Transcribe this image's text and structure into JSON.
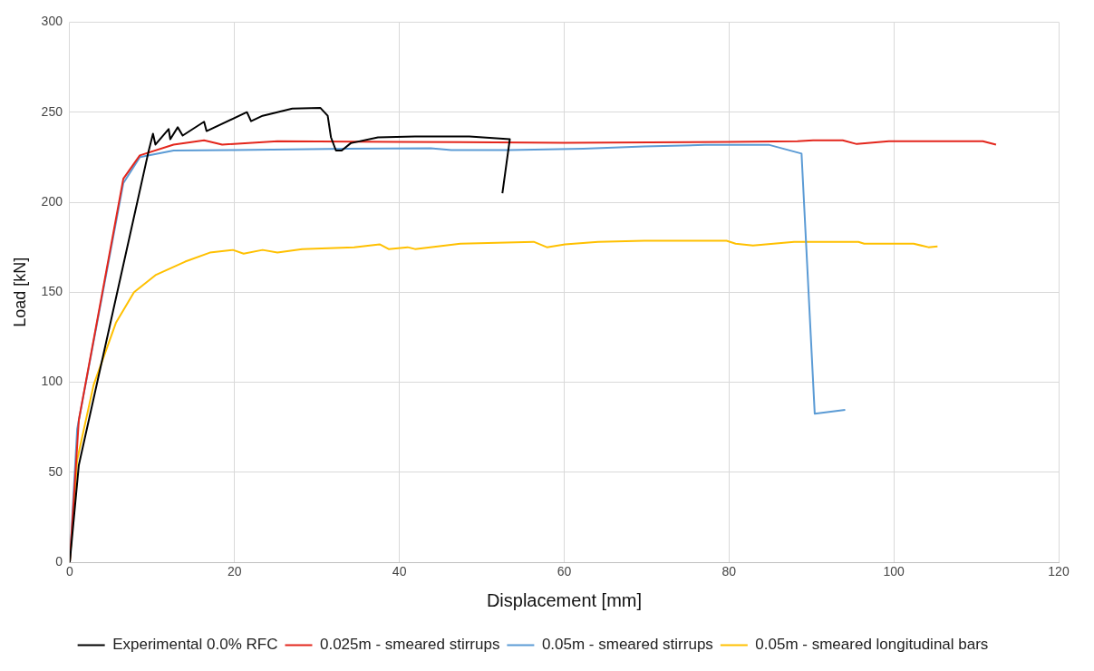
{
  "chart_data": {
    "type": "line",
    "xlabel": "Displacement [mm]",
    "ylabel": "Load [kN]",
    "xlim": [
      0,
      120
    ],
    "xticks": [
      0,
      20,
      40,
      60,
      80,
      100,
      120
    ],
    "ylim": [
      0,
      300
    ],
    "yticks": [
      0,
      50,
      100,
      150,
      200,
      250,
      300
    ],
    "grid": true,
    "legend": "bottom",
    "series": [
      {
        "name": "Experimental 0.0% RFC",
        "color": "#000000",
        "x": [
          0,
          1.1,
          9.6,
          10.1,
          10.4,
          12,
          12.2,
          13.1,
          13.7,
          16.3,
          16.6,
          21.5,
          22,
          23.4,
          27,
          30.4,
          31.3,
          31.7,
          32.3,
          33,
          34.1,
          37.4,
          41.9,
          48.5,
          53.4,
          52.5
        ],
        "values": [
          0,
          54,
          229,
          238,
          232,
          240.6,
          235,
          241.6,
          237,
          244.7,
          239.5,
          250,
          245,
          248,
          252,
          252.4,
          248,
          236,
          228.7,
          228.7,
          232.8,
          236,
          236.5,
          236.5,
          235,
          205
        ]
      },
      {
        "name": "0.025m - smeared stirrups",
        "color": "#e3261c",
        "x": [
          0,
          1.1,
          6.5,
          8.5,
          12.6,
          16.3,
          18.5,
          25.2,
          40,
          60,
          80,
          88.3,
          90.2,
          93.8,
          95.5,
          99.4,
          110.8,
          112.4
        ],
        "values": [
          0,
          79,
          213,
          226,
          232,
          234.4,
          232,
          233.9,
          233.5,
          233,
          233.5,
          233.9,
          234.4,
          234.4,
          232.3,
          233.9,
          233.9,
          232
        ]
      },
      {
        "name": "0.05m - smeared stirrups",
        "color": "#5b9bd5",
        "x": [
          0,
          0.9,
          6.5,
          8.5,
          12.6,
          20,
          33.7,
          43.8,
          46.3,
          53.4,
          62.3,
          69.7,
          77.1,
          84.9,
          88.8,
          90.4,
          94.1
        ],
        "values": [
          0,
          74,
          210.6,
          225,
          228.7,
          229,
          229.7,
          230,
          229,
          229,
          229.7,
          231,
          231.8,
          231.8,
          227,
          82.6,
          84.7
        ]
      },
      {
        "name": "0.05m - smeared longitudinal bars",
        "color": "#ffc000",
        "x": [
          0,
          0.9,
          2.9,
          5.6,
          7.8,
          10.4,
          14,
          17,
          19.8,
          21.1,
          23.4,
          25.2,
          28.2,
          34.5,
          37.6,
          38.7,
          41,
          41.9,
          47.4,
          56.3,
          57.9,
          60.1,
          64.1,
          69.7,
          79.7,
          80.8,
          82.9,
          87.9,
          95.7,
          96.4,
          102.4,
          104.2,
          105.3
        ],
        "values": [
          0,
          57,
          98.6,
          133,
          150,
          159.5,
          167,
          172,
          173.5,
          171.4,
          173.5,
          172,
          174,
          175,
          176.6,
          174,
          175,
          174,
          177,
          178,
          175,
          176.6,
          178,
          178.6,
          178.6,
          177,
          176,
          178,
          178,
          177,
          177,
          175,
          175.5
        ]
      }
    ]
  }
}
